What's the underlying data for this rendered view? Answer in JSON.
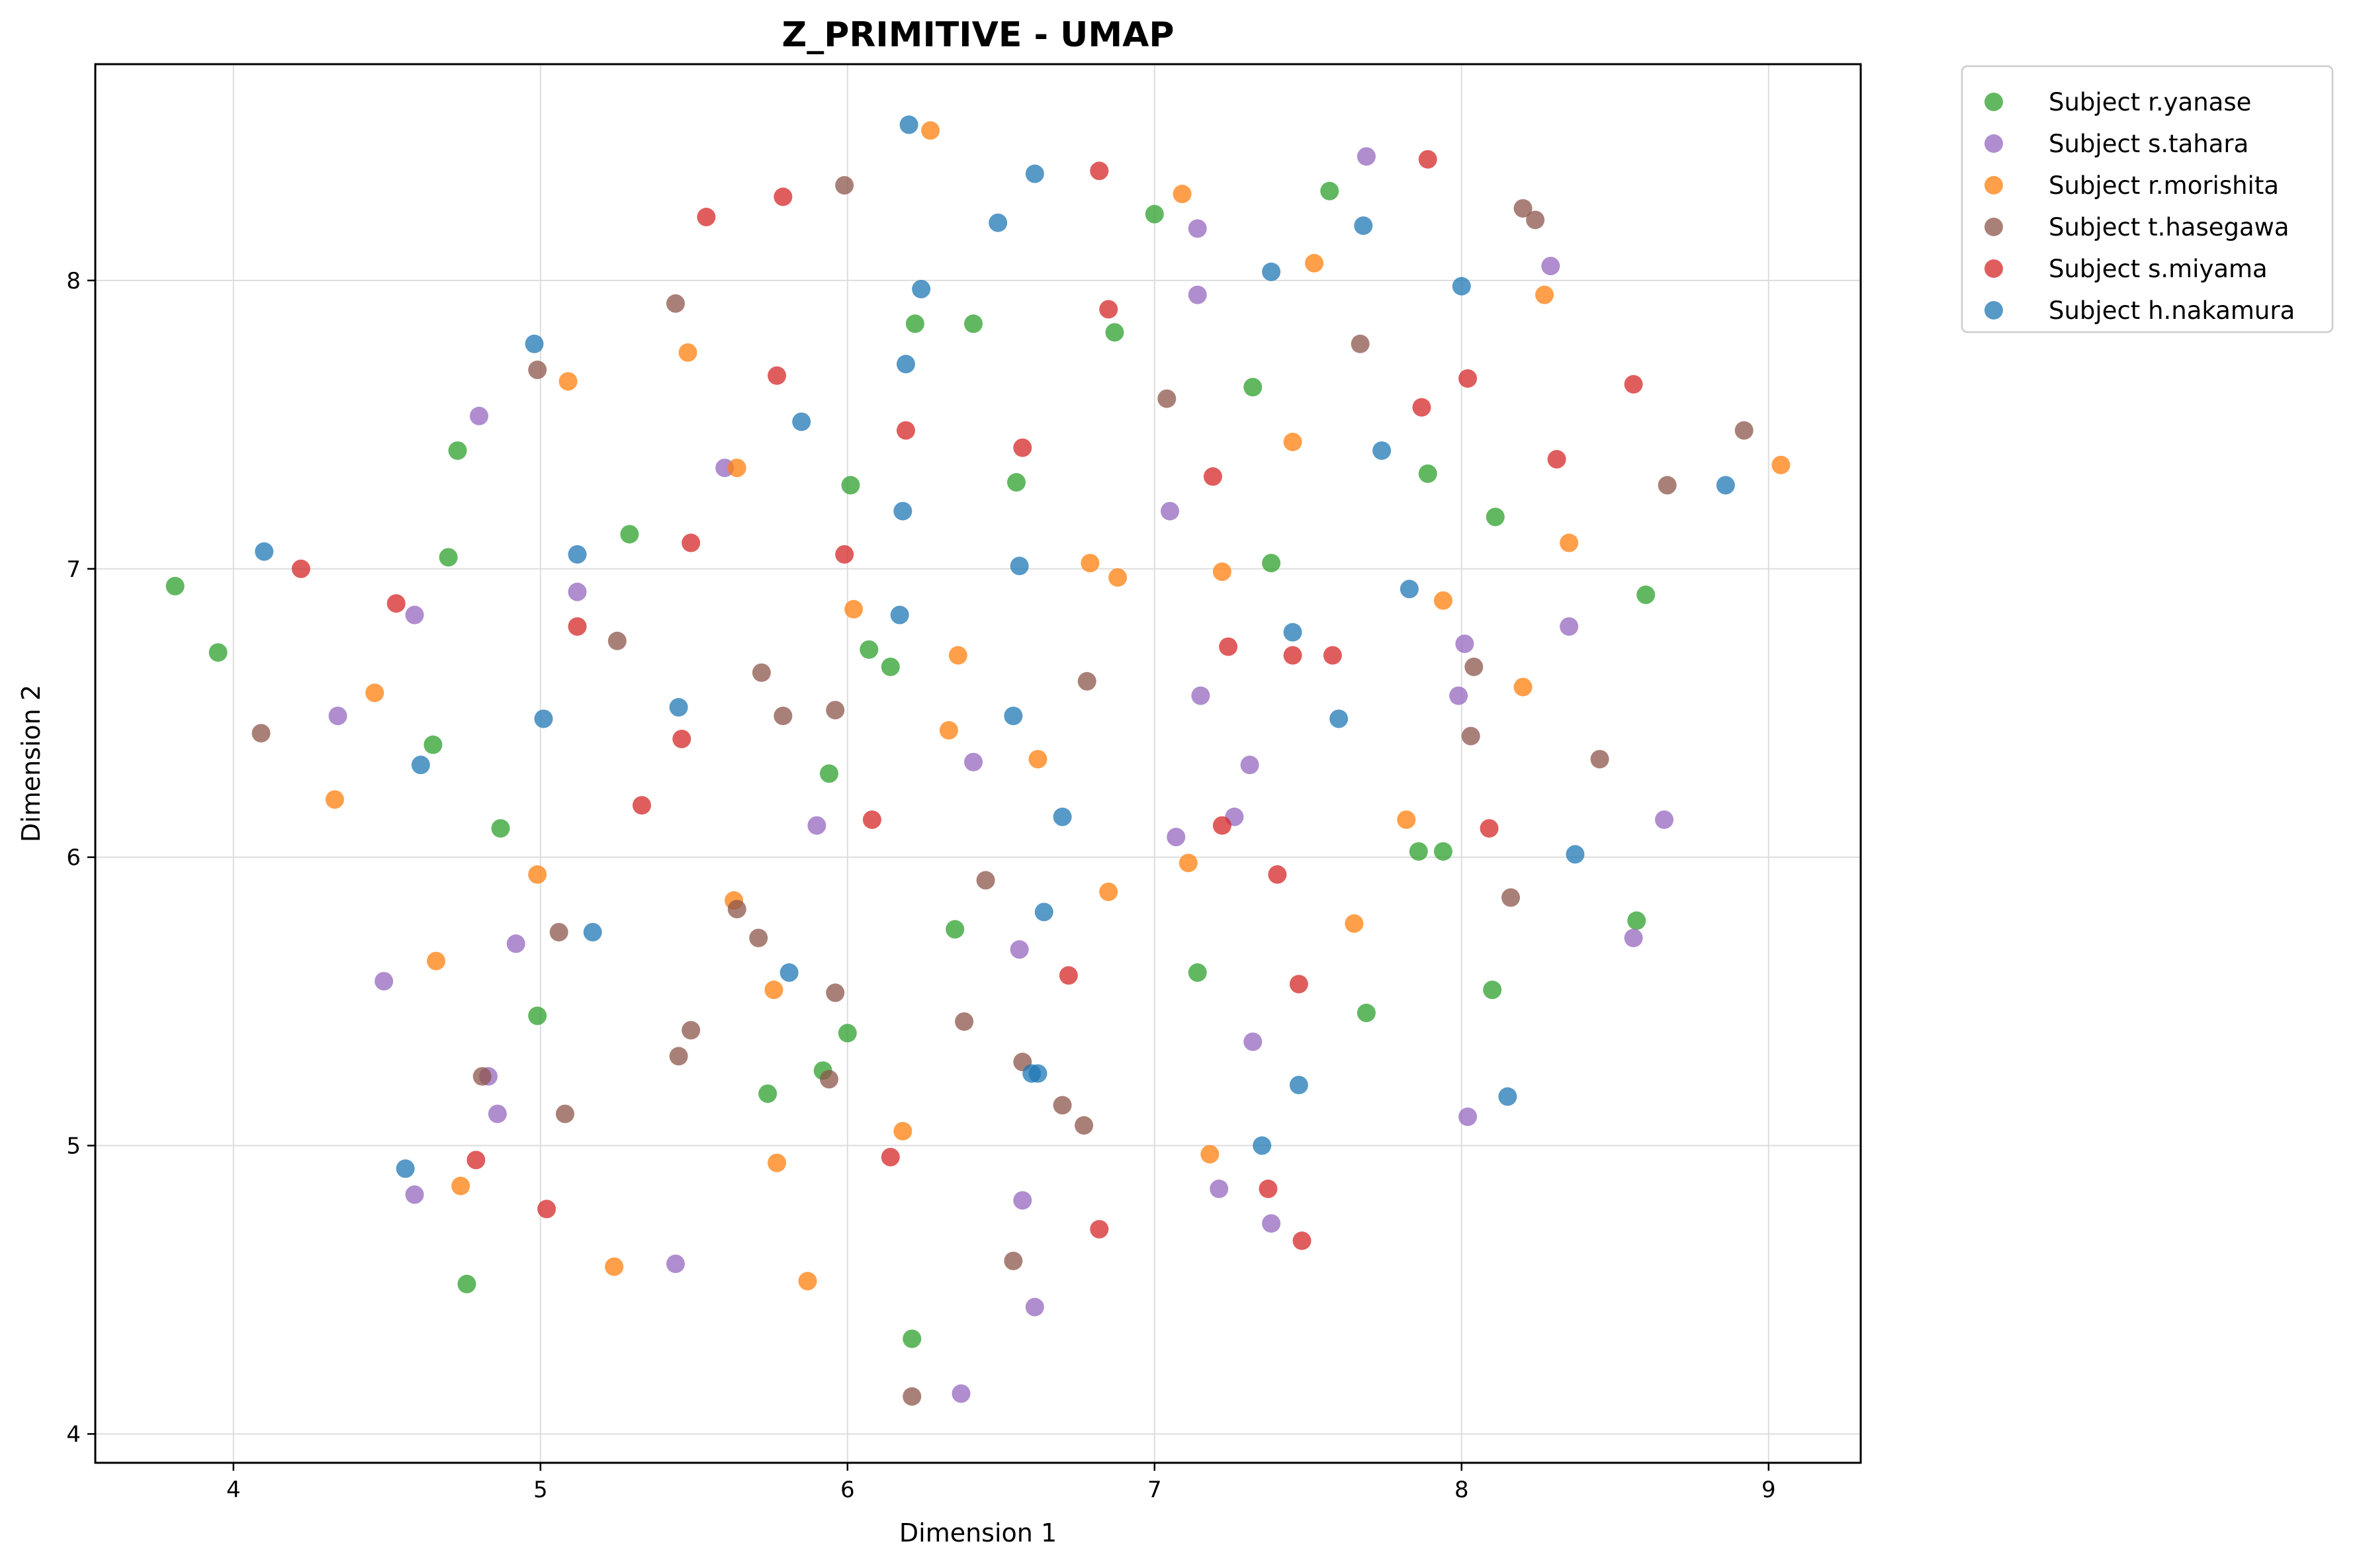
{
  "chart_data": {
    "type": "scatter",
    "title": "Z_PRIMITIVE - UMAP",
    "xlabel": "Dimension 1",
    "ylabel": "Dimension 2",
    "xlim": [
      3.55,
      9.3
    ],
    "ylim": [
      3.9,
      8.75
    ],
    "xticks": [
      "4",
      "5",
      "6",
      "7",
      "8",
      "9"
    ],
    "yticks": [
      "4",
      "5",
      "6",
      "7",
      "8"
    ],
    "grid": true,
    "legend_position": "outside-top-right",
    "series": [
      {
        "name": "Subject r.yanase",
        "color": "#2ca02c",
        "points": [
          [
            3.81,
            6.94
          ],
          [
            3.95,
            6.71
          ],
          [
            4.65,
            6.39
          ],
          [
            4.7,
            7.04
          ],
          [
            4.73,
            7.41
          ],
          [
            4.87,
            6.1
          ],
          [
            4.76,
            4.52
          ],
          [
            4.99,
            5.45
          ],
          [
            5.29,
            7.12
          ],
          [
            5.74,
            5.18
          ],
          [
            5.92,
            5.26
          ],
          [
            5.94,
            6.29
          ],
          [
            6.01,
            7.29
          ],
          [
            6.0,
            5.39
          ],
          [
            6.07,
            6.72
          ],
          [
            6.14,
            6.66
          ],
          [
            6.22,
            7.85
          ],
          [
            6.41,
            7.85
          ],
          [
            6.35,
            5.75
          ],
          [
            6.21,
            4.33
          ],
          [
            6.55,
            7.3
          ],
          [
            6.87,
            7.82
          ],
          [
            7.0,
            8.23
          ],
          [
            7.14,
            5.6
          ],
          [
            7.32,
            7.63
          ],
          [
            7.38,
            7.02
          ],
          [
            7.57,
            8.31
          ],
          [
            7.69,
            5.46
          ],
          [
            7.86,
            6.02
          ],
          [
            7.89,
            7.33
          ],
          [
            7.94,
            6.02
          ],
          [
            8.1,
            5.54
          ],
          [
            8.11,
            7.18
          ],
          [
            8.57,
            5.78
          ],
          [
            8.6,
            6.91
          ]
        ]
      },
      {
        "name": "Subject s.tahara",
        "color": "#9467bd",
        "points": [
          [
            4.34,
            6.49
          ],
          [
            4.49,
            5.57
          ],
          [
            4.59,
            6.84
          ],
          [
            4.59,
            4.83
          ],
          [
            4.8,
            7.53
          ],
          [
            4.83,
            5.24
          ],
          [
            4.86,
            5.11
          ],
          [
            4.92,
            5.7
          ],
          [
            5.12,
            6.92
          ],
          [
            5.44,
            4.59
          ],
          [
            5.6,
            7.35
          ],
          [
            5.9,
            6.11
          ],
          [
            6.37,
            4.14
          ],
          [
            6.41,
            6.33
          ],
          [
            6.56,
            5.68
          ],
          [
            6.57,
            4.81
          ],
          [
            6.61,
            4.44
          ],
          [
            7.05,
            7.2
          ],
          [
            7.07,
            6.07
          ],
          [
            7.14,
            7.95
          ],
          [
            7.14,
            8.18
          ],
          [
            7.15,
            6.56
          ],
          [
            7.21,
            4.85
          ],
          [
            7.26,
            6.14
          ],
          [
            7.31,
            6.32
          ],
          [
            7.32,
            5.36
          ],
          [
            7.38,
            4.73
          ],
          [
            7.69,
            8.43
          ],
          [
            7.99,
            6.56
          ],
          [
            8.01,
            6.74
          ],
          [
            8.02,
            5.1
          ],
          [
            8.29,
            8.05
          ],
          [
            8.35,
            6.8
          ],
          [
            8.56,
            5.72
          ],
          [
            8.66,
            6.13
          ]
        ]
      },
      {
        "name": "Subject r.morishita",
        "color": "#ff7f0e",
        "points": [
          [
            4.33,
            6.2
          ],
          [
            4.46,
            6.57
          ],
          [
            4.66,
            5.64
          ],
          [
            4.74,
            4.86
          ],
          [
            4.99,
            5.94
          ],
          [
            5.09,
            7.65
          ],
          [
            5.24,
            4.58
          ],
          [
            5.48,
            7.75
          ],
          [
            5.63,
            5.85
          ],
          [
            5.64,
            7.35
          ],
          [
            5.76,
            5.54
          ],
          [
            5.77,
            4.94
          ],
          [
            5.87,
            4.53
          ],
          [
            6.02,
            6.86
          ],
          [
            6.18,
            5.05
          ],
          [
            6.27,
            8.52
          ],
          [
            6.33,
            6.44
          ],
          [
            6.36,
            6.7
          ],
          [
            6.62,
            6.34
          ],
          [
            6.79,
            7.02
          ],
          [
            6.85,
            5.88
          ],
          [
            6.88,
            6.97
          ],
          [
            7.09,
            8.3
          ],
          [
            7.11,
            5.98
          ],
          [
            7.18,
            4.97
          ],
          [
            7.22,
            6.99
          ],
          [
            7.45,
            7.44
          ],
          [
            7.52,
            8.06
          ],
          [
            7.65,
            5.77
          ],
          [
            7.82,
            6.13
          ],
          [
            7.94,
            6.89
          ],
          [
            8.2,
            6.59
          ],
          [
            8.27,
            7.95
          ],
          [
            8.35,
            7.09
          ],
          [
            9.04,
            7.36
          ]
        ]
      },
      {
        "name": "Subject t.hasegawa",
        "color": "#8c564b",
        "points": [
          [
            4.09,
            6.43
          ],
          [
            4.81,
            5.24
          ],
          [
            4.99,
            7.69
          ],
          [
            5.06,
            5.74
          ],
          [
            5.08,
            5.11
          ],
          [
            5.25,
            6.75
          ],
          [
            5.44,
            7.92
          ],
          [
            5.45,
            5.31
          ],
          [
            5.49,
            5.4
          ],
          [
            5.64,
            5.82
          ],
          [
            5.71,
            5.72
          ],
          [
            5.72,
            6.64
          ],
          [
            5.79,
            6.49
          ],
          [
            5.94,
            5.23
          ],
          [
            5.96,
            5.53
          ],
          [
            5.96,
            6.51
          ],
          [
            5.99,
            8.33
          ],
          [
            6.21,
            4.13
          ],
          [
            6.38,
            5.43
          ],
          [
            6.45,
            5.92
          ],
          [
            6.54,
            4.6
          ],
          [
            6.57,
            5.29
          ],
          [
            6.7,
            5.14
          ],
          [
            6.77,
            5.07
          ],
          [
            6.78,
            6.61
          ],
          [
            7.04,
            7.59
          ],
          [
            7.67,
            7.78
          ],
          [
            8.03,
            6.42
          ],
          [
            8.04,
            6.66
          ],
          [
            8.16,
            5.86
          ],
          [
            8.2,
            8.25
          ],
          [
            8.24,
            8.21
          ],
          [
            8.45,
            6.34
          ],
          [
            8.67,
            7.29
          ],
          [
            8.92,
            7.48
          ]
        ]
      },
      {
        "name": "Subject s.miyama",
        "color": "#d62728",
        "points": [
          [
            4.22,
            7.0
          ],
          [
            4.53,
            6.88
          ],
          [
            4.79,
            4.95
          ],
          [
            5.02,
            4.78
          ],
          [
            5.12,
            6.8
          ],
          [
            5.33,
            6.18
          ],
          [
            5.46,
            6.41
          ],
          [
            5.49,
            7.09
          ],
          [
            5.54,
            8.22
          ],
          [
            5.77,
            7.67
          ],
          [
            5.79,
            8.29
          ],
          [
            5.99,
            7.05
          ],
          [
            6.08,
            6.13
          ],
          [
            6.14,
            4.96
          ],
          [
            6.19,
            7.48
          ],
          [
            6.57,
            7.42
          ],
          [
            6.72,
            5.59
          ],
          [
            6.82,
            8.38
          ],
          [
            6.82,
            4.71
          ],
          [
            6.85,
            7.9
          ],
          [
            7.19,
            7.32
          ],
          [
            7.22,
            6.11
          ],
          [
            7.24,
            6.73
          ],
          [
            7.37,
            4.85
          ],
          [
            7.4,
            5.94
          ],
          [
            7.45,
            6.7
          ],
          [
            7.47,
            5.56
          ],
          [
            7.48,
            4.67
          ],
          [
            7.58,
            6.7
          ],
          [
            7.87,
            7.56
          ],
          [
            7.89,
            8.42
          ],
          [
            8.02,
            7.66
          ],
          [
            8.09,
            6.1
          ],
          [
            8.31,
            7.38
          ],
          [
            8.56,
            7.64
          ]
        ]
      },
      {
        "name": "Subject h.nakamura",
        "color": "#1f77b4",
        "points": [
          [
            4.1,
            7.06
          ],
          [
            4.56,
            4.92
          ],
          [
            4.61,
            6.32
          ],
          [
            4.98,
            7.78
          ],
          [
            5.01,
            6.48
          ],
          [
            5.12,
            7.05
          ],
          [
            5.17,
            5.74
          ],
          [
            5.45,
            6.52
          ],
          [
            5.81,
            5.6
          ],
          [
            5.85,
            7.51
          ],
          [
            6.17,
            6.84
          ],
          [
            6.18,
            7.2
          ],
          [
            6.19,
            7.71
          ],
          [
            6.2,
            8.54
          ],
          [
            6.24,
            7.97
          ],
          [
            6.49,
            8.2
          ],
          [
            6.54,
            6.49
          ],
          [
            6.56,
            7.01
          ],
          [
            6.6,
            5.25
          ],
          [
            6.61,
            8.37
          ],
          [
            6.62,
            5.25
          ],
          [
            6.64,
            5.81
          ],
          [
            6.7,
            6.14
          ],
          [
            7.35,
            5.0
          ],
          [
            7.38,
            8.03
          ],
          [
            7.45,
            6.78
          ],
          [
            7.47,
            5.21
          ],
          [
            7.6,
            6.48
          ],
          [
            7.68,
            8.19
          ],
          [
            7.74,
            7.41
          ],
          [
            7.83,
            6.93
          ],
          [
            8.0,
            7.98
          ],
          [
            8.15,
            5.17
          ],
          [
            8.37,
            6.01
          ],
          [
            8.86,
            7.29
          ]
        ]
      }
    ]
  }
}
